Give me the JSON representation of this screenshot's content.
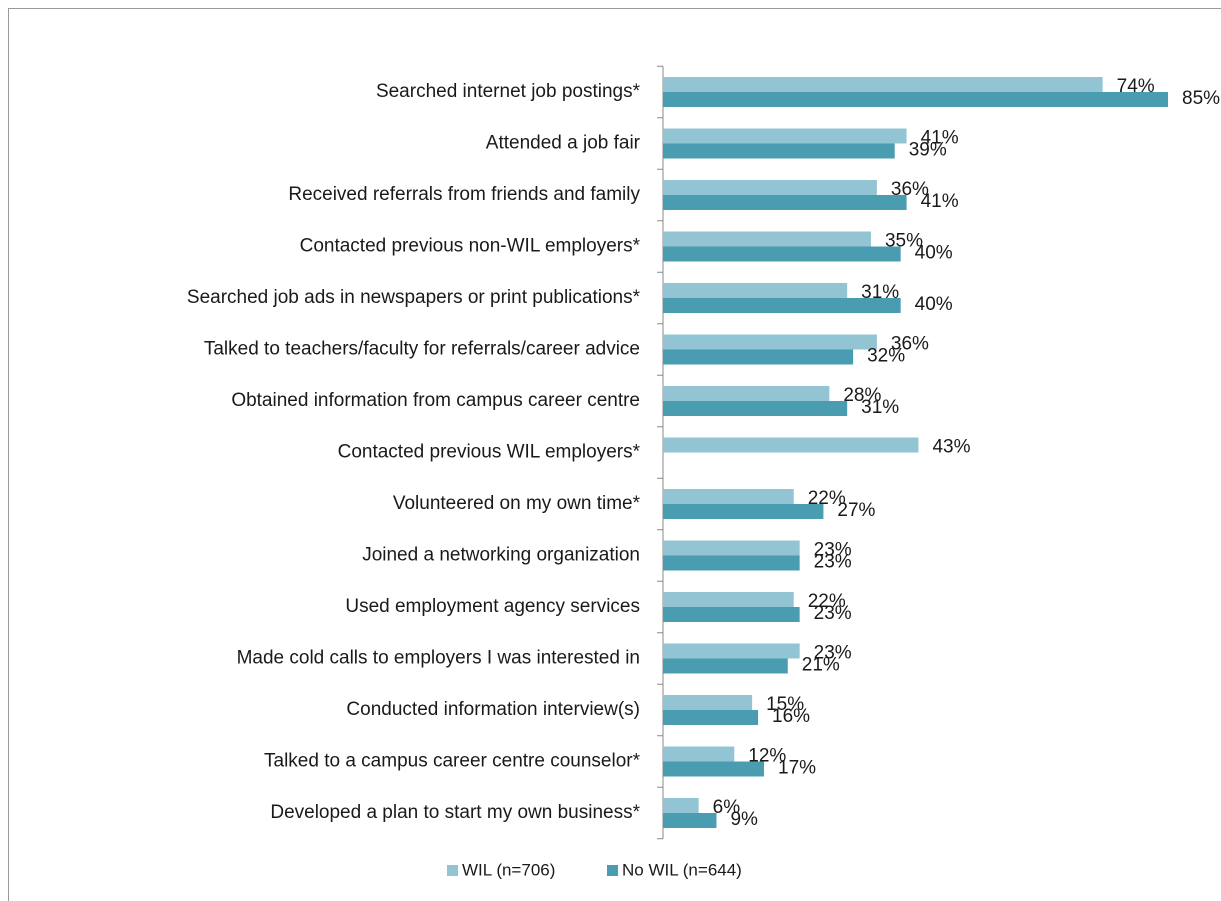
{
  "chart_data": {
    "type": "hbar",
    "categories": [
      "Searched internet job postings*",
      "Attended a job fair",
      "Received referrals from friends and family",
      "Contacted previous non-WIL employers*",
      "Searched job ads in newspapers or print publications*",
      "Talked to teachers/faculty for referrals/career advice",
      "Obtained information from campus career centre",
      "Contacted previous WIL employers*",
      "Volunteered on my own time*",
      "Joined a networking organization",
      "Used employment agency services",
      "Made cold calls to employers I was interested in",
      "Conducted information interview(s)",
      "Talked to a campus career centre counselor*",
      "Developed a plan to start my own business*"
    ],
    "series": [
      {
        "name": "WIL (n=706)",
        "color": "#93c4d3",
        "values": [
          74,
          41,
          36,
          35,
          31,
          36,
          28,
          43,
          22,
          23,
          22,
          23,
          15,
          12,
          6
        ],
        "value_labels": [
          "74%",
          "41%",
          "36%",
          "35%",
          "31%",
          "36%",
          "28%",
          "43%",
          "22%",
          "23%",
          "22%",
          "23%",
          "15%",
          "12%",
          "6%"
        ]
      },
      {
        "name": "No WIL (n=644)",
        "color": "#4a9cb1",
        "values": [
          85,
          39,
          41,
          40,
          40,
          32,
          31,
          null,
          27,
          23,
          23,
          21,
          16,
          17,
          9
        ],
        "value_labels": [
          "85%",
          "39%",
          "41%",
          "40%",
          "40%",
          "32%",
          "31%",
          null,
          "27%",
          "23%",
          "23%",
          "21%",
          "16%",
          "17%",
          "9%"
        ]
      }
    ],
    "legend": "bottom"
  }
}
